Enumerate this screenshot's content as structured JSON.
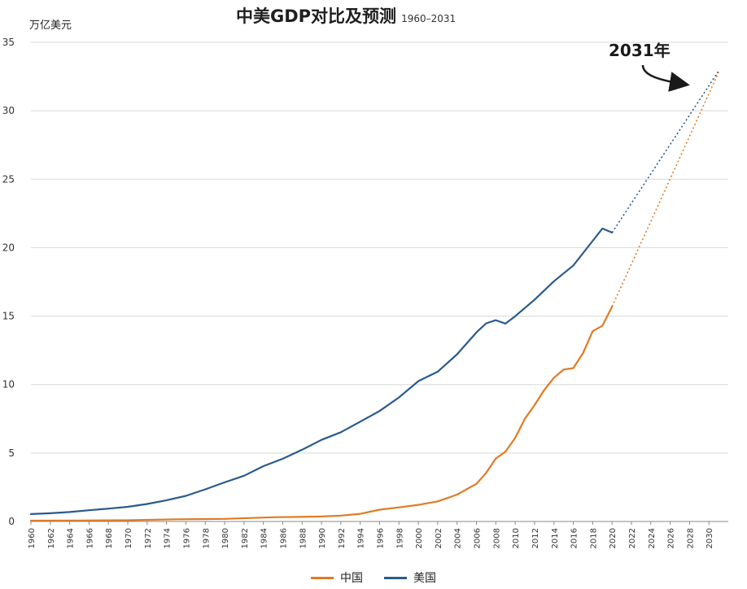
{
  "chart_data": {
    "type": "line",
    "title": "中美GDP对比及预测",
    "subtitle": "1960–2031",
    "unit_label": "万亿美元",
    "annotation": "2031年",
    "ylim": [
      0,
      35
    ],
    "yticks": [
      0,
      5,
      10,
      15,
      20,
      25,
      30,
      35
    ],
    "xlim": [
      1960,
      2032
    ],
    "xticks": [
      1960,
      1962,
      1964,
      1966,
      1968,
      1970,
      1972,
      1974,
      1976,
      1978,
      1980,
      1982,
      1984,
      1986,
      1988,
      1990,
      1992,
      1994,
      1996,
      1998,
      2000,
      2002,
      2004,
      2006,
      2008,
      2010,
      2012,
      2014,
      2016,
      2018,
      2020,
      2022,
      2024,
      2026,
      2028,
      2030
    ],
    "grid": true,
    "legend_position": "bottom-center",
    "series": [
      {
        "name": "中国",
        "color": "#e07b24",
        "x": [
          1960,
          1965,
          1970,
          1975,
          1980,
          1985,
          1990,
          1992,
          1994,
          1996,
          1998,
          2000,
          2002,
          2004,
          2006,
          2007,
          2008,
          2009,
          2010,
          2011,
          2012,
          2013,
          2014,
          2015,
          2016,
          2017,
          2018,
          2019,
          2020
        ],
        "y": [
          0.06,
          0.07,
          0.09,
          0.16,
          0.19,
          0.31,
          0.36,
          0.43,
          0.56,
          0.86,
          1.03,
          1.21,
          1.47,
          1.96,
          2.75,
          3.55,
          4.6,
          5.1,
          6.1,
          7.5,
          8.5,
          9.6,
          10.5,
          11.1,
          11.2,
          12.3,
          13.9,
          14.3,
          15.7
        ],
        "projection": {
          "x": [
            2020,
            2031
          ],
          "y": [
            15.7,
            32.8
          ]
        }
      },
      {
        "name": "美国",
        "color": "#2a5b8c",
        "x": [
          1960,
          1962,
          1964,
          1966,
          1968,
          1970,
          1972,
          1974,
          1976,
          1978,
          1980,
          1982,
          1984,
          1986,
          1988,
          1990,
          1992,
          1994,
          1996,
          1998,
          2000,
          2002,
          2004,
          2006,
          2007,
          2008,
          2009,
          2010,
          2012,
          2014,
          2016,
          2018,
          2019,
          2020
        ],
        "y": [
          0.54,
          0.6,
          0.69,
          0.82,
          0.94,
          1.07,
          1.28,
          1.55,
          1.87,
          2.35,
          2.86,
          3.34,
          4.04,
          4.58,
          5.24,
          5.96,
          6.52,
          7.29,
          8.07,
          9.06,
          10.25,
          10.94,
          12.21,
          13.81,
          14.47,
          14.7,
          14.45,
          14.99,
          16.2,
          17.55,
          18.7,
          20.5,
          21.4,
          21.1
        ],
        "projection": {
          "x": [
            2020,
            2031
          ],
          "y": [
            21.1,
            32.9
          ]
        }
      }
    ]
  }
}
